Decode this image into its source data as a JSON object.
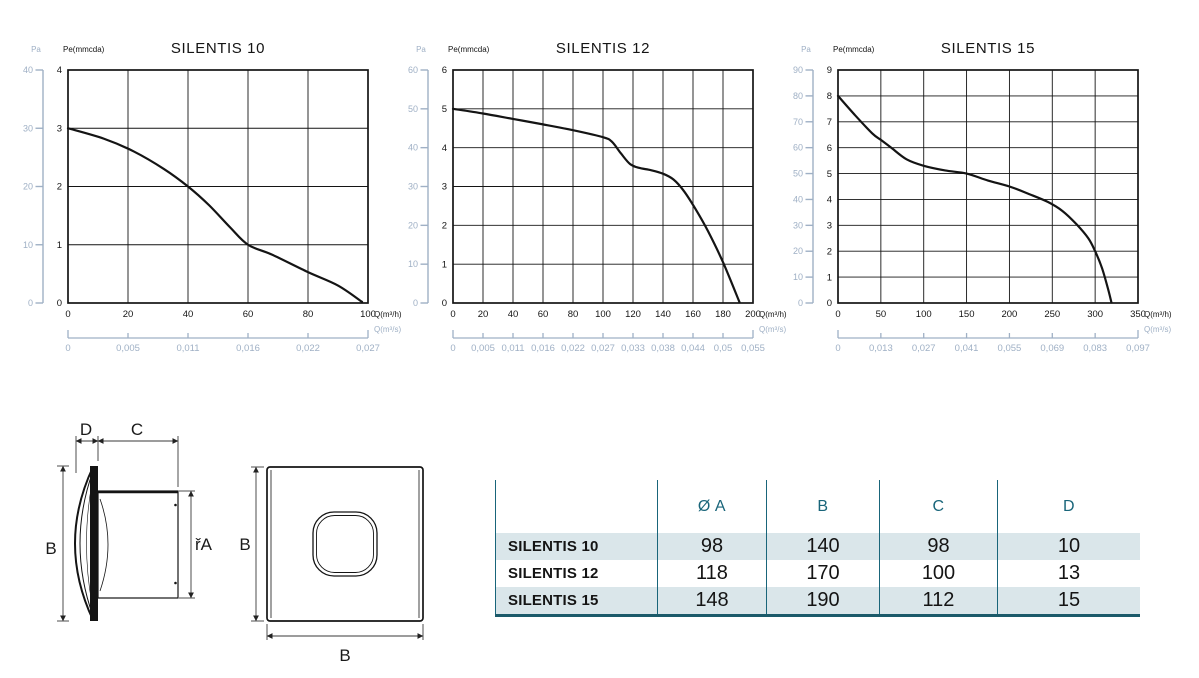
{
  "chart_data": [
    {
      "type": "line",
      "title": "SILENTIS 10",
      "y_axis": {
        "label": "Pe(mmcda)",
        "min": 0,
        "max": 4,
        "ticks": [
          0,
          1,
          2,
          3,
          4
        ]
      },
      "y2_axis": {
        "label": "Pa",
        "min": 0,
        "max": 40,
        "ticks": [
          0,
          10,
          20,
          30,
          40
        ]
      },
      "x_axis": {
        "label": "Q(m³/h)",
        "min": 0,
        "max": 100,
        "ticks": [
          0,
          20,
          40,
          60,
          80,
          100
        ]
      },
      "x2_axis": {
        "label": "Q(m³/s)",
        "tick_labels": [
          "0",
          "0,005",
          "0,011",
          "0,016",
          "0,022",
          "0,027"
        ]
      },
      "grid": true,
      "legend": "none",
      "curve_points": [
        [
          0,
          3.0
        ],
        [
          12,
          2.82
        ],
        [
          22,
          2.6
        ],
        [
          32,
          2.3
        ],
        [
          40,
          2.0
        ],
        [
          47,
          1.68
        ],
        [
          54,
          1.3
        ],
        [
          60,
          1.0
        ],
        [
          68,
          0.83
        ],
        [
          80,
          0.53
        ],
        [
          90,
          0.3
        ],
        [
          98,
          0.02
        ]
      ]
    },
    {
      "type": "line",
      "title": "SILENTIS 12",
      "y_axis": {
        "label": "Pe(mmcda)",
        "min": 0,
        "max": 6,
        "ticks": [
          0,
          1,
          2,
          3,
          4,
          5,
          6
        ]
      },
      "y2_axis": {
        "label": "Pa",
        "min": 0,
        "max": 60,
        "ticks": [
          0,
          10,
          20,
          30,
          40,
          50,
          60
        ]
      },
      "x_axis": {
        "label": "Q(m³/h)",
        "min": 0,
        "max": 200,
        "ticks": [
          0,
          20,
          40,
          60,
          80,
          100,
          120,
          140,
          160,
          180,
          200
        ]
      },
      "x2_axis": {
        "label": "Q(m³/s)",
        "tick_labels": [
          "0",
          "0,005",
          "0,011",
          "0,016",
          "0,022",
          "0,027",
          "0,033",
          "0,038",
          "0,044",
          "0,05",
          "0,055"
        ]
      },
      "grid": true,
      "legend": "none",
      "curve_points": [
        [
          0,
          5.0
        ],
        [
          20,
          4.88
        ],
        [
          40,
          4.74
        ],
        [
          60,
          4.6
        ],
        [
          80,
          4.45
        ],
        [
          100,
          4.27
        ],
        [
          106,
          4.15
        ],
        [
          112,
          3.85
        ],
        [
          118,
          3.58
        ],
        [
          124,
          3.48
        ],
        [
          132,
          3.42
        ],
        [
          140,
          3.33
        ],
        [
          147,
          3.18
        ],
        [
          154,
          2.88
        ],
        [
          162,
          2.4
        ],
        [
          170,
          1.85
        ],
        [
          180,
          1.05
        ],
        [
          191,
          0.02
        ]
      ]
    },
    {
      "type": "line",
      "title": "SILENTIS 15",
      "y_axis": {
        "label": "Pe(mmcda)",
        "min": 0,
        "max": 9,
        "ticks": [
          0,
          1,
          2,
          3,
          4,
          5,
          6,
          7,
          8,
          9
        ]
      },
      "y2_axis": {
        "label": "Pa",
        "min": 0,
        "max": 90,
        "ticks": [
          0,
          10,
          20,
          30,
          40,
          50,
          60,
          70,
          80,
          90
        ]
      },
      "x_axis": {
        "label": "Q(m³/h)",
        "min": 0,
        "max": 350,
        "ticks": [
          0,
          50,
          100,
          150,
          200,
          250,
          300,
          350
        ]
      },
      "x2_axis": {
        "label": "Q(m³/s)",
        "tick_labels": [
          "0",
          "0,013",
          "0,027",
          "0,041",
          "0,055",
          "0,069",
          "0,083",
          "0,097"
        ]
      },
      "grid": true,
      "legend": "none",
      "curve_points": [
        [
          0,
          8.0
        ],
        [
          20,
          7.25
        ],
        [
          40,
          6.55
        ],
        [
          50,
          6.3
        ],
        [
          62,
          6.0
        ],
        [
          80,
          5.55
        ],
        [
          100,
          5.3
        ],
        [
          125,
          5.12
        ],
        [
          150,
          5.0
        ],
        [
          175,
          4.73
        ],
        [
          200,
          4.5
        ],
        [
          222,
          4.22
        ],
        [
          245,
          3.9
        ],
        [
          262,
          3.55
        ],
        [
          278,
          3.05
        ],
        [
          292,
          2.5
        ],
        [
          300,
          2.0
        ],
        [
          308,
          1.35
        ],
        [
          315,
          0.55
        ],
        [
          319,
          0.02
        ]
      ]
    }
  ],
  "drawing": {
    "labels": {
      "d": "D",
      "c": "C",
      "b_side": "B",
      "a": "řA",
      "b_front_left": "B",
      "b_front_bottom": "B"
    }
  },
  "table": {
    "headers": [
      "",
      "Ø A",
      "B",
      "C",
      "D"
    ],
    "rows": [
      {
        "name": "SILENTIS 10",
        "values": [
          "98",
          "140",
          "98",
          "10"
        ]
      },
      {
        "name": "SILENTIS 12",
        "values": [
          "118",
          "170",
          "100",
          "13"
        ]
      },
      {
        "name": "SILENTIS 15",
        "values": [
          "148",
          "190",
          "112",
          "15"
        ]
      }
    ]
  },
  "colors": {
    "axis_secondary": "#9fb0c5",
    "chart_line": "#141414",
    "table_teal": "#19657a",
    "row_shade": "#dae6ea"
  }
}
